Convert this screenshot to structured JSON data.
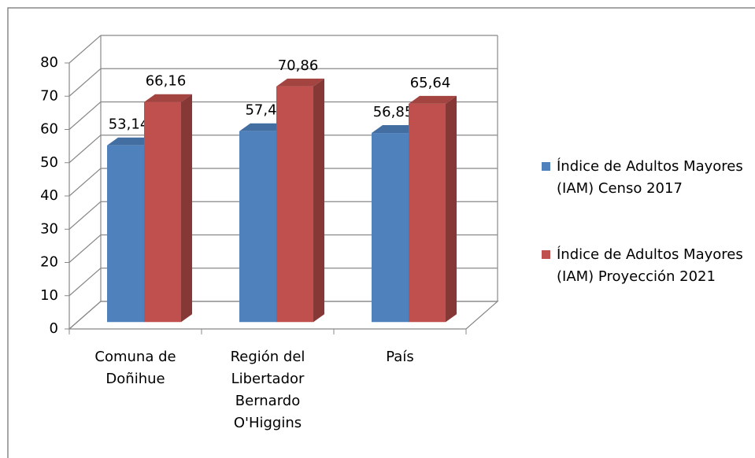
{
  "chart_data": {
    "type": "bar",
    "categories": [
      "Comuna de Doñihue",
      "Región del Libertador Bernardo O'Higgins",
      "País"
    ],
    "series": [
      {
        "name": "Índice de Adultos Mayores (IAM) Censo 2017",
        "color": "#4f81bd",
        "values": [
          53.14,
          57.4,
          56.85
        ],
        "value_labels": [
          "53,14",
          "57,4",
          "56,85"
        ]
      },
      {
        "name": "Índice de Adultos Mayores (IAM) Proyección 2021",
        "color": "#c0504d",
        "values": [
          66.16,
          70.86,
          65.64
        ],
        "value_labels": [
          "66,16",
          "70,86",
          "65,64"
        ]
      }
    ],
    "ylim": [
      0,
      80
    ],
    "yticks": [
      0,
      10,
      20,
      30,
      40,
      50,
      60,
      70,
      80
    ],
    "grid": true,
    "legend": "right"
  }
}
